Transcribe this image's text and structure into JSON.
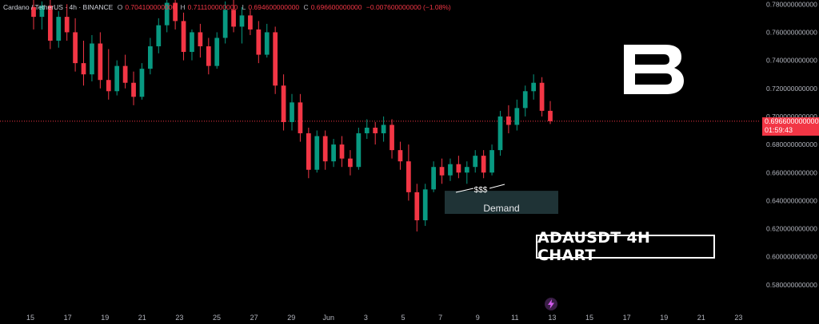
{
  "legend": {
    "symbol": "Cardano / TetherUS · 4h · BINANCE",
    "o_label": "O",
    "o_value": "0.704100000000",
    "h_label": "H",
    "h_value": "0.711100000000",
    "l_label": "L",
    "l_value": "0.694600000000",
    "c_label": "C",
    "c_value": "0.696600000000",
    "change": "−0.007600000000 (−1.08%)"
  },
  "price_tag": {
    "price": "0.696600000000",
    "countdown": "01:59:43"
  },
  "annotations": {
    "liquidity": "$$$",
    "zone": "Demand"
  },
  "watermark": "ADAUSDT 4H CHART",
  "colors": {
    "up": "#089981",
    "down": "#f23645",
    "background": "#000000",
    "zone": "#1f3336"
  },
  "icons": {
    "logo": "brand-b-logo",
    "bolt": "lightning-icon"
  },
  "chart_data": {
    "type": "candlestick",
    "symbol": "ADAUSDT",
    "interval": "4h",
    "y_ticks": [
      "0.780000000000",
      "0.760000000000",
      "0.740000000000",
      "0.720000000000",
      "0.700000000000",
      "0.680000000000",
      "0.660000000000",
      "0.640000000000",
      "0.620000000000",
      "0.600000000000",
      "0.580000000000"
    ],
    "y_values": [
      0.78,
      0.76,
      0.74,
      0.72,
      0.7,
      0.68,
      0.66,
      0.64,
      0.62,
      0.6,
      0.58
    ],
    "ylim": [
      0.568,
      0.783
    ],
    "x_ticks": [
      "15",
      "17",
      "19",
      "21",
      "23",
      "25",
      "27",
      "29",
      "Jun",
      "3",
      "5",
      "7",
      "9",
      "11",
      "13",
      "15",
      "17",
      "19",
      "21",
      "23"
    ],
    "last_price": 0.6966,
    "demand_zone": [
      0.637,
      0.647
    ],
    "series": [
      {
        "t": 0,
        "o": 0.778,
        "h": 0.785,
        "l": 0.762,
        "c": 0.771
      },
      {
        "t": 1,
        "o": 0.771,
        "h": 0.782,
        "l": 0.762,
        "c": 0.779
      },
      {
        "t": 2,
        "o": 0.779,
        "h": 0.783,
        "l": 0.748,
        "c": 0.754
      },
      {
        "t": 3,
        "o": 0.754,
        "h": 0.775,
        "l": 0.749,
        "c": 0.771
      },
      {
        "t": 4,
        "o": 0.771,
        "h": 0.78,
        "l": 0.754,
        "c": 0.76
      },
      {
        "t": 5,
        "o": 0.76,
        "h": 0.77,
        "l": 0.732,
        "c": 0.738
      },
      {
        "t": 6,
        "o": 0.738,
        "h": 0.754,
        "l": 0.722,
        "c": 0.73
      },
      {
        "t": 7,
        "o": 0.73,
        "h": 0.758,
        "l": 0.725,
        "c": 0.752
      },
      {
        "t": 8,
        "o": 0.752,
        "h": 0.76,
        "l": 0.72,
        "c": 0.726
      },
      {
        "t": 9,
        "o": 0.726,
        "h": 0.748,
        "l": 0.712,
        "c": 0.718
      },
      {
        "t": 10,
        "o": 0.718,
        "h": 0.74,
        "l": 0.715,
        "c": 0.736
      },
      {
        "t": 11,
        "o": 0.736,
        "h": 0.744,
        "l": 0.72,
        "c": 0.724
      },
      {
        "t": 12,
        "o": 0.724,
        "h": 0.732,
        "l": 0.708,
        "c": 0.714
      },
      {
        "t": 13,
        "o": 0.714,
        "h": 0.738,
        "l": 0.712,
        "c": 0.734
      },
      {
        "t": 14,
        "o": 0.734,
        "h": 0.756,
        "l": 0.73,
        "c": 0.75
      },
      {
        "t": 15,
        "o": 0.75,
        "h": 0.77,
        "l": 0.745,
        "c": 0.765
      },
      {
        "t": 16,
        "o": 0.765,
        "h": 0.785,
        "l": 0.76,
        "c": 0.781
      },
      {
        "t": 17,
        "o": 0.781,
        "h": 0.785,
        "l": 0.762,
        "c": 0.768
      },
      {
        "t": 18,
        "o": 0.768,
        "h": 0.774,
        "l": 0.74,
        "c": 0.746
      },
      {
        "t": 19,
        "o": 0.746,
        "h": 0.762,
        "l": 0.74,
        "c": 0.76
      },
      {
        "t": 20,
        "o": 0.76,
        "h": 0.766,
        "l": 0.742,
        "c": 0.75
      },
      {
        "t": 21,
        "o": 0.75,
        "h": 0.756,
        "l": 0.73,
        "c": 0.736
      },
      {
        "t": 22,
        "o": 0.736,
        "h": 0.76,
        "l": 0.734,
        "c": 0.756
      },
      {
        "t": 23,
        "o": 0.756,
        "h": 0.782,
        "l": 0.752,
        "c": 0.776
      },
      {
        "t": 24,
        "o": 0.776,
        "h": 0.784,
        "l": 0.76,
        "c": 0.764
      },
      {
        "t": 25,
        "o": 0.764,
        "h": 0.778,
        "l": 0.752,
        "c": 0.772
      },
      {
        "t": 26,
        "o": 0.772,
        "h": 0.776,
        "l": 0.758,
        "c": 0.762
      },
      {
        "t": 27,
        "o": 0.762,
        "h": 0.768,
        "l": 0.738,
        "c": 0.744
      },
      {
        "t": 28,
        "o": 0.744,
        "h": 0.766,
        "l": 0.742,
        "c": 0.76
      },
      {
        "t": 29,
        "o": 0.76,
        "h": 0.764,
        "l": 0.716,
        "c": 0.722
      },
      {
        "t": 30,
        "o": 0.722,
        "h": 0.73,
        "l": 0.69,
        "c": 0.696
      },
      {
        "t": 31,
        "o": 0.696,
        "h": 0.716,
        "l": 0.69,
        "c": 0.71
      },
      {
        "t": 32,
        "o": 0.71,
        "h": 0.716,
        "l": 0.682,
        "c": 0.688
      },
      {
        "t": 33,
        "o": 0.688,
        "h": 0.692,
        "l": 0.656,
        "c": 0.662
      },
      {
        "t": 34,
        "o": 0.662,
        "h": 0.69,
        "l": 0.66,
        "c": 0.686
      },
      {
        "t": 35,
        "o": 0.686,
        "h": 0.69,
        "l": 0.662,
        "c": 0.668
      },
      {
        "t": 36,
        "o": 0.668,
        "h": 0.684,
        "l": 0.664,
        "c": 0.68
      },
      {
        "t": 37,
        "o": 0.68,
        "h": 0.686,
        "l": 0.664,
        "c": 0.67
      },
      {
        "t": 38,
        "o": 0.67,
        "h": 0.676,
        "l": 0.658,
        "c": 0.664
      },
      {
        "t": 39,
        "o": 0.664,
        "h": 0.692,
        "l": 0.662,
        "c": 0.688
      },
      {
        "t": 40,
        "o": 0.688,
        "h": 0.698,
        "l": 0.684,
        "c": 0.692
      },
      {
        "t": 41,
        "o": 0.692,
        "h": 0.696,
        "l": 0.68,
        "c": 0.688
      },
      {
        "t": 42,
        "o": 0.688,
        "h": 0.7,
        "l": 0.682,
        "c": 0.694
      },
      {
        "t": 43,
        "o": 0.694,
        "h": 0.698,
        "l": 0.67,
        "c": 0.676
      },
      {
        "t": 44,
        "o": 0.676,
        "h": 0.682,
        "l": 0.662,
        "c": 0.668
      },
      {
        "t": 45,
        "o": 0.668,
        "h": 0.68,
        "l": 0.64,
        "c": 0.646
      },
      {
        "t": 46,
        "o": 0.646,
        "h": 0.652,
        "l": 0.618,
        "c": 0.626
      },
      {
        "t": 47,
        "o": 0.626,
        "h": 0.652,
        "l": 0.622,
        "c": 0.648
      },
      {
        "t": 48,
        "o": 0.648,
        "h": 0.668,
        "l": 0.646,
        "c": 0.664
      },
      {
        "t": 49,
        "o": 0.664,
        "h": 0.67,
        "l": 0.652,
        "c": 0.658
      },
      {
        "t": 50,
        "o": 0.658,
        "h": 0.67,
        "l": 0.654,
        "c": 0.666
      },
      {
        "t": 51,
        "o": 0.666,
        "h": 0.672,
        "l": 0.656,
        "c": 0.66
      },
      {
        "t": 52,
        "o": 0.66,
        "h": 0.668,
        "l": 0.652,
        "c": 0.664
      },
      {
        "t": 53,
        "o": 0.664,
        "h": 0.676,
        "l": 0.66,
        "c": 0.672
      },
      {
        "t": 54,
        "o": 0.672,
        "h": 0.676,
        "l": 0.656,
        "c": 0.66
      },
      {
        "t": 55,
        "o": 0.66,
        "h": 0.68,
        "l": 0.658,
        "c": 0.676
      },
      {
        "t": 56,
        "o": 0.676,
        "h": 0.704,
        "l": 0.672,
        "c": 0.7
      },
      {
        "t": 57,
        "o": 0.7,
        "h": 0.708,
        "l": 0.688,
        "c": 0.694
      },
      {
        "t": 58,
        "o": 0.694,
        "h": 0.712,
        "l": 0.69,
        "c": 0.706
      },
      {
        "t": 59,
        "o": 0.706,
        "h": 0.722,
        "l": 0.7,
        "c": 0.718
      },
      {
        "t": 60,
        "o": 0.718,
        "h": 0.73,
        "l": 0.712,
        "c": 0.724
      },
      {
        "t": 61,
        "o": 0.724,
        "h": 0.728,
        "l": 0.7,
        "c": 0.704
      },
      {
        "t": 62,
        "o": 0.704,
        "h": 0.711,
        "l": 0.6946,
        "c": 0.6966
      }
    ]
  }
}
